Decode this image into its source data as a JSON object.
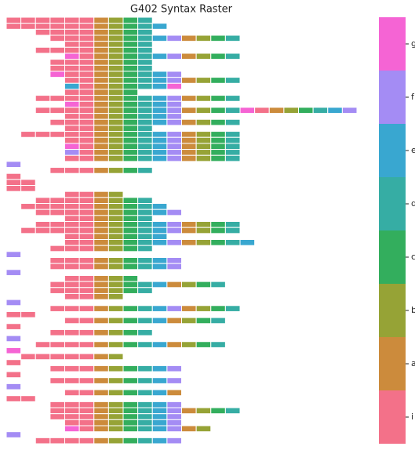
{
  "chart_data": {
    "type": "raster",
    "title": "G402 Syntax Raster",
    "categories": [
      "i",
      "a",
      "b",
      "c",
      "d",
      "e",
      "f",
      "g"
    ],
    "colors": [
      "#f37189",
      "#cc8b3c",
      "#96a336",
      "#33ae5d",
      "#36ada4",
      "#39a7d0",
      "#a48cf4",
      "#f564d4"
    ],
    "rows": [
      [
        0,
        0,
        0,
        0,
        0,
        0,
        1,
        2,
        3,
        4
      ],
      [
        0,
        0,
        0,
        0,
        0,
        0,
        1,
        2,
        3,
        4,
        5
      ],
      [
        null,
        null,
        0,
        0,
        0,
        0,
        1,
        2,
        3,
        4
      ],
      [
        null,
        null,
        null,
        0,
        0,
        0,
        1,
        2,
        3,
        4,
        5,
        6,
        1,
        2,
        3,
        4
      ],
      [
        null,
        null,
        null,
        null,
        0,
        0,
        1,
        2,
        3,
        4
      ],
      [
        null,
        null,
        0,
        0,
        0,
        0,
        1,
        2,
        3,
        4
      ],
      [
        null,
        null,
        null,
        null,
        7,
        0,
        1,
        2,
        3,
        4,
        5,
        6,
        1,
        2,
        3,
        4
      ],
      [
        null,
        null,
        null,
        0,
        0,
        0,
        1,
        2,
        3,
        4
      ],
      [
        null,
        null,
        null,
        0,
        0,
        0,
        1,
        2,
        3,
        4
      ],
      [
        null,
        null,
        null,
        7,
        0,
        0,
        1,
        2,
        3,
        4,
        5,
        6
      ],
      [
        null,
        null,
        null,
        null,
        0,
        0,
        1,
        2,
        3,
        4,
        5,
        6,
        1,
        2,
        3,
        4
      ],
      [
        null,
        null,
        null,
        null,
        5,
        0,
        1,
        2,
        3,
        4,
        5,
        7
      ],
      [
        null,
        null,
        null,
        null,
        0,
        0,
        1,
        2,
        3
      ],
      [
        null,
        null,
        0,
        0,
        0,
        0,
        1,
        2,
        3,
        4,
        5,
        6,
        1,
        2,
        3,
        4
      ],
      [
        null,
        null,
        null,
        null,
        7,
        0,
        1,
        2,
        3,
        4,
        5,
        6
      ],
      [
        null,
        null,
        0,
        0,
        0,
        0,
        1,
        2,
        3,
        4,
        5,
        6,
        1,
        2,
        3,
        4,
        7,
        0,
        1,
        2,
        3,
        4,
        5,
        6
      ],
      [
        null,
        null,
        null,
        null,
        0,
        0,
        1,
        2,
        3,
        4,
        5,
        6
      ],
      [
        null,
        null,
        null,
        0,
        0,
        0,
        1,
        2,
        3,
        4,
        5,
        6,
        1,
        2,
        3,
        4
      ],
      [
        null,
        null,
        null,
        null,
        0,
        0,
        1,
        2,
        3,
        4
      ],
      [
        null,
        0,
        0,
        0,
        0,
        0,
        1,
        2,
        3,
        4,
        5,
        6,
        1,
        2,
        3,
        4
      ],
      [
        null,
        null,
        null,
        null,
        0,
        0,
        1,
        2,
        3,
        4,
        5,
        6,
        1,
        2,
        3,
        4
      ],
      [
        null,
        null,
        null,
        null,
        7,
        0,
        1,
        2,
        3,
        4,
        5,
        6,
        1,
        2,
        3,
        4
      ],
      [
        null,
        null,
        null,
        null,
        6,
        0,
        1,
        2,
        3,
        4,
        5,
        6,
        1,
        2,
        3,
        4
      ],
      [
        null,
        null,
        null,
        null,
        0,
        0,
        1,
        2,
        3,
        4,
        5,
        6,
        1,
        2,
        3,
        4
      ],
      [
        6
      ],
      [
        null,
        null,
        null,
        0,
        0,
        0,
        1,
        2,
        3,
        4
      ],
      [
        0
      ],
      [
        0,
        0
      ],
      [
        0,
        0
      ],
      [
        null,
        null,
        null,
        null,
        0,
        0,
        1,
        2
      ],
      [
        null,
        null,
        0,
        0,
        0,
        0,
        1,
        2,
        3,
        4
      ],
      [
        null,
        0,
        0,
        0,
        0,
        0,
        1,
        2,
        3,
        4,
        5
      ],
      [
        null,
        null,
        0,
        0,
        0,
        0,
        1,
        2,
        3,
        4,
        5,
        6
      ],
      [
        null,
        null,
        null,
        null,
        0,
        0,
        1,
        2,
        3,
        4
      ],
      [
        null,
        null,
        0,
        0,
        0,
        0,
        1,
        2,
        3,
        4,
        5,
        6,
        1,
        2,
        3,
        4
      ],
      [
        null,
        0,
        0,
        0,
        0,
        0,
        1,
        2,
        3,
        4,
        5,
        6,
        1,
        2,
        3,
        4
      ],
      [
        null,
        null,
        null,
        null,
        0,
        0,
        1,
        2,
        3,
        4,
        5
      ],
      [
        null,
        null,
        null,
        null,
        0,
        0,
        1,
        2,
        3,
        4,
        5,
        6,
        1,
        2,
        3,
        4,
        5
      ],
      [
        null,
        null,
        null,
        0,
        0,
        0,
        1,
        2,
        3,
        4
      ],
      [
        6
      ],
      [
        null,
        null,
        null,
        0,
        0,
        0,
        1,
        2,
        3,
        4,
        5,
        6
      ],
      [
        null,
        null,
        null,
        0,
        0,
        0,
        1,
        2,
        3,
        4,
        5,
        6
      ],
      [
        6
      ],
      [
        null,
        null,
        null,
        null,
        0,
        0,
        1,
        2,
        3
      ],
      [
        null,
        null,
        null,
        0,
        0,
        0,
        1,
        2,
        3,
        4,
        5,
        1,
        2,
        3,
        4
      ],
      [
        null,
        null,
        null,
        0,
        0,
        0,
        1,
        2,
        3,
        4
      ],
      [
        null,
        null,
        null,
        null,
        0,
        0,
        1,
        2
      ],
      [
        6
      ],
      [
        null,
        null,
        null,
        0,
        0,
        0,
        1,
        2,
        3,
        4,
        5,
        6,
        1,
        2,
        3,
        4
      ],
      [
        0,
        0
      ],
      [
        null,
        null,
        null,
        null,
        0,
        0,
        1,
        2,
        3,
        4,
        5,
        1,
        2,
        3,
        4
      ],
      [
        0
      ],
      [
        null,
        null,
        null,
        0,
        0,
        0,
        1,
        2,
        3,
        4
      ],
      [
        6
      ],
      [
        null,
        null,
        0,
        0,
        0,
        0,
        1,
        2,
        3,
        4,
        5,
        1,
        2,
        3,
        4
      ],
      [
        7
      ],
      [
        null,
        0,
        0,
        0,
        0,
        0,
        1,
        2
      ],
      [
        0
      ],
      [
        null,
        null,
        null,
        0,
        0,
        0,
        1,
        2,
        3,
        4,
        5,
        6
      ],
      [
        0
      ],
      [
        null,
        null,
        null,
        0,
        0,
        0,
        1,
        2,
        3,
        4,
        5,
        6
      ],
      [
        6
      ],
      [
        null,
        null,
        null,
        null,
        0,
        0,
        1,
        2,
        3,
        4,
        5,
        1
      ],
      [
        0,
        0
      ],
      [
        null,
        null,
        null,
        0,
        0,
        0,
        1,
        2,
        3,
        4,
        5,
        6
      ],
      [
        null,
        null,
        null,
        0,
        0,
        0,
        1,
        2,
        3,
        4,
        5,
        6,
        1,
        2,
        3,
        4
      ],
      [
        null,
        null,
        null,
        0,
        0,
        0,
        1,
        2,
        3,
        4,
        5,
        6
      ],
      [
        null,
        null,
        null,
        null,
        0,
        0,
        1,
        2,
        3,
        4,
        5,
        6
      ],
      [
        null,
        null,
        null,
        null,
        7,
        0,
        1,
        2,
        3,
        4,
        5,
        6,
        1,
        2
      ],
      [
        6
      ],
      [
        null,
        null,
        0,
        0,
        0,
        0,
        1,
        2,
        3,
        4,
        5,
        6
      ]
    ]
  }
}
